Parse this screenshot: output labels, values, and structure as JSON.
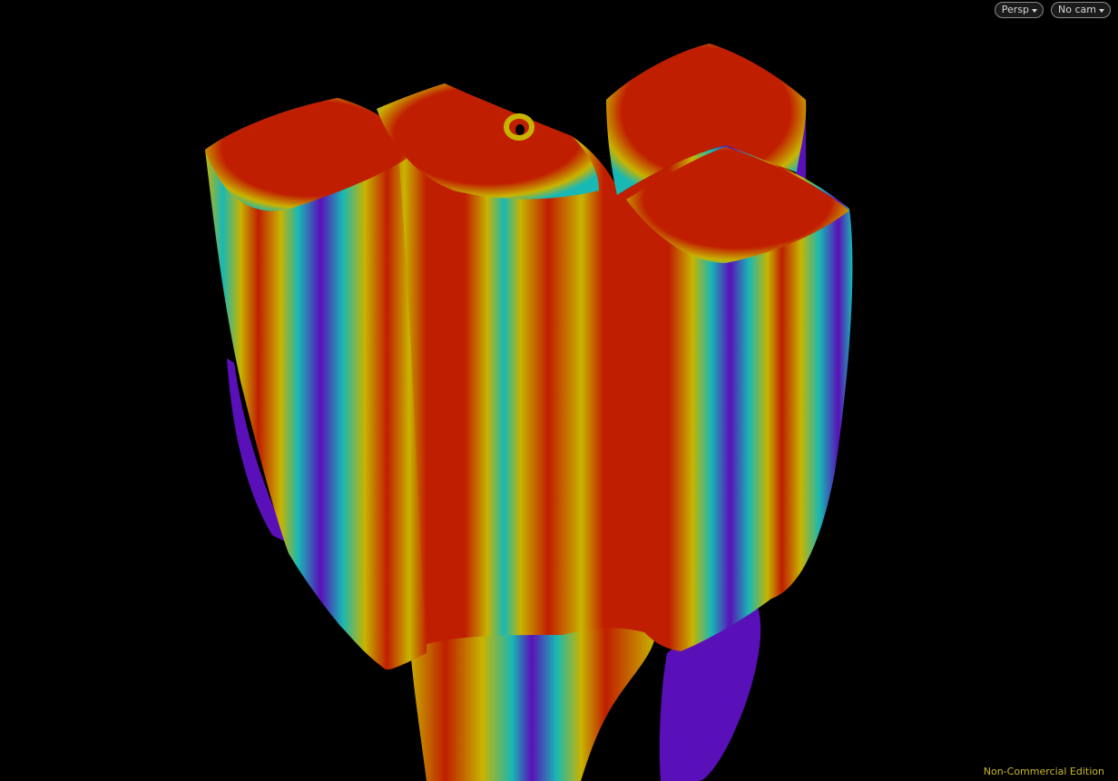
{
  "viewport": {
    "background": "#000000",
    "projection_button": {
      "label": "Persp",
      "icon": "chevron-down-icon"
    },
    "camera_button": {
      "label": "No cam",
      "icon": "chevron-down-icon"
    },
    "watermark": "Non-Commercial Edition",
    "colors": {
      "watermark": "#c8b82a",
      "heatmap_red": "#c01e00",
      "heatmap_yellow": "#c8b400",
      "heatmap_cyan": "#18b8b4",
      "heatmap_violet": "#5a10b8"
    }
  }
}
